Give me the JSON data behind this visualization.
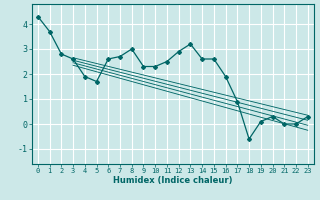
{
  "xlabel": "Humidex (Indice chaleur)",
  "ylabel": "",
  "bg_color": "#cce8e8",
  "grid_color": "#ffffff",
  "line_color": "#006666",
  "xlim": [
    -0.5,
    23.5
  ],
  "ylim": [
    -1.6,
    4.8
  ],
  "xticks": [
    0,
    1,
    2,
    3,
    4,
    5,
    6,
    7,
    8,
    9,
    10,
    11,
    12,
    13,
    14,
    15,
    16,
    17,
    18,
    19,
    20,
    21,
    22,
    23
  ],
  "yticks": [
    -1,
    0,
    1,
    2,
    3,
    4
  ],
  "main_x": [
    0,
    1,
    2,
    3,
    4,
    5,
    6,
    7,
    8,
    9,
    10,
    11,
    12,
    13,
    14,
    15,
    16,
    17,
    18,
    19,
    20,
    21,
    22,
    23
  ],
  "main_y": [
    4.3,
    3.7,
    2.8,
    2.6,
    1.9,
    1.7,
    2.6,
    2.7,
    3.0,
    2.3,
    2.3,
    2.5,
    2.9,
    3.2,
    2.6,
    2.6,
    1.9,
    0.9,
    -0.6,
    0.1,
    0.3,
    0.0,
    0.0,
    0.3
  ],
  "line1_x": [
    3,
    23
  ],
  "line1_y": [
    2.65,
    0.35
  ],
  "line2_x": [
    3,
    23
  ],
  "line2_y": [
    2.55,
    0.15
  ],
  "line3_x": [
    3,
    23
  ],
  "line3_y": [
    2.45,
    -0.05
  ],
  "line4_x": [
    3,
    23
  ],
  "line4_y": [
    2.35,
    -0.25
  ]
}
